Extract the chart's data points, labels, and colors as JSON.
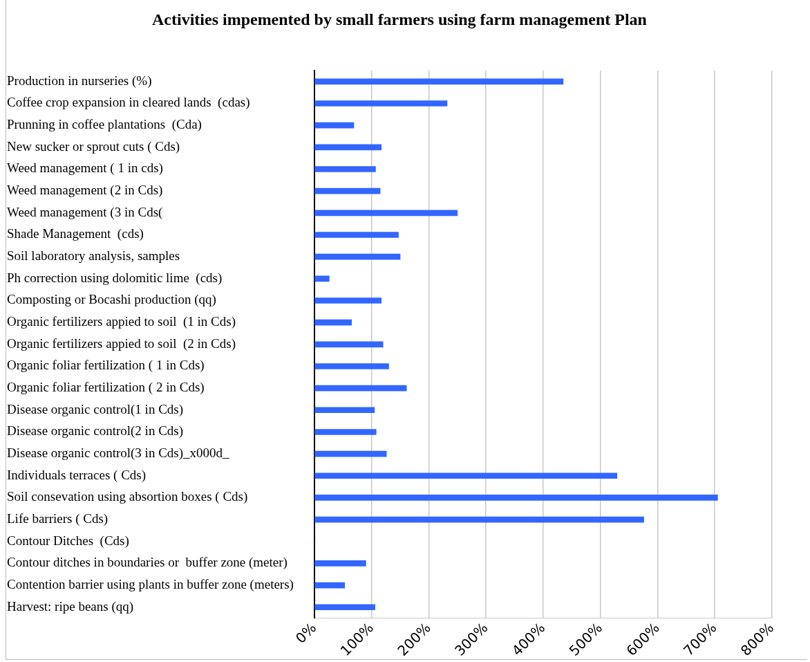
{
  "chart_data": {
    "type": "bar",
    "orientation": "horizontal",
    "title": "Activities impemented by small farmers using farm management Plan",
    "categories": [
      "Production in nurseries (%)",
      "Coffee crop expansion in cleared lands  (cdas)",
      "Prunning in coffee plantations  (Cda)",
      "New sucker or sprout cuts ( Cds)",
      "Weed management ( 1 in cds)",
      "Weed management (2 in Cds)",
      "Weed management (3 in Cds(",
      "Shade Management  (cds)",
      "Soil laboratory analysis, samples",
      "Ph correction using dolomitic lime  (cds)",
      "Composting or Bocashi production (qq)",
      "Organic fertilizers appied to soil  (1 in Cds)",
      "Organic fertilizers appied to soil  (2 in Cds)",
      "Organic foliar fertilization ( 1 in Cds)",
      "Organic foliar fertilization ( 2 in Cds)",
      "Disease organic control(1 in Cds)",
      "Disease organic control(2 in Cds)",
      "Disease organic control(3 in Cds)_x000d_",
      "Individuals terraces ( Cds)",
      "Soil consevation using absortion boxes ( Cds)",
      "Life barriers ( Cds)",
      "Contour Ditches  (Cds)",
      "Contour ditches in boundaries or  buffer zone (meter)",
      "Contention barrier using plants in buffer zone (meters)",
      "Harvest: ripe beans (qq)"
    ],
    "values": [
      435,
      232,
      69,
      117,
      107,
      115,
      250,
      147,
      150,
      26,
      117,
      65,
      120,
      130,
      161,
      105,
      108,
      126,
      529,
      705,
      576,
      0,
      90,
      53,
      106
    ],
    "color": "#3366ff",
    "xlim": [
      0,
      800
    ],
    "xticks": [
      {
        "value": 0,
        "label": "0%"
      },
      {
        "value": 100,
        "label": "100%"
      },
      {
        "value": 200,
        "label": "200%"
      },
      {
        "value": 300,
        "label": "300%"
      },
      {
        "value": 400,
        "label": "400%"
      },
      {
        "value": 500,
        "label": "500%"
      },
      {
        "value": 600,
        "label": "600%"
      },
      {
        "value": 700,
        "label": "700%"
      },
      {
        "value": 800,
        "label": "800%"
      }
    ],
    "grid": "x"
  }
}
